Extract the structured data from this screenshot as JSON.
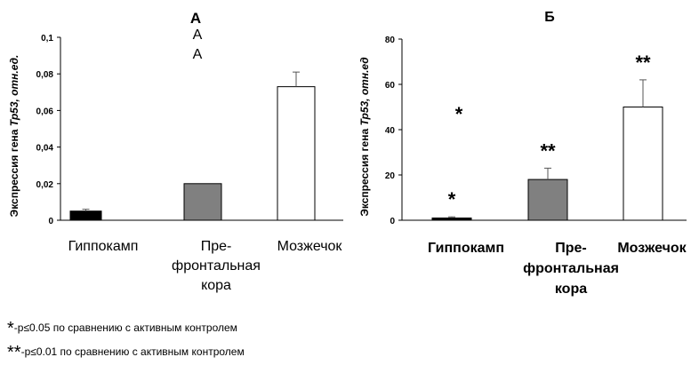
{
  "chart_data": [
    {
      "type": "bar",
      "title": "А",
      "annotations": [
        "А",
        "А"
      ],
      "ylabel_main": "Экспрессия гена ",
      "ylabel_italic": "Тр53, отн.ед.",
      "xlabel": "",
      "categories": [
        "Гиппокамп",
        "Пре-\nфронтальная\nкора",
        "Мозжечок"
      ],
      "values": [
        0.005,
        0.02,
        0.073
      ],
      "errors": [
        0.001,
        0.0,
        0.008
      ],
      "significance": [
        "",
        "",
        ""
      ],
      "colors": [
        "#000000",
        "#808080",
        "#ffffff"
      ],
      "ylim": [
        0,
        0.1
      ],
      "yticks": [
        0,
        0.02,
        0.04,
        0.06,
        0.08,
        0.1
      ],
      "ytick_labels": [
        "0",
        "0,02",
        "0,04",
        "0,06",
        "0,08",
        "0,1"
      ],
      "grid": false,
      "legend": "none"
    },
    {
      "type": "bar",
      "title": "Б",
      "annotations": [
        "*"
      ],
      "ylabel_main": "Экспрессия гена ",
      "ylabel_italic": "Тр53, отн.ед",
      "xlabel": "",
      "categories": [
        "Гиппокамп",
        "Пре-\nфронтальная\nкора",
        "Мозжечок"
      ],
      "values": [
        1,
        18,
        50
      ],
      "errors": [
        0.5,
        5,
        12
      ],
      "significance": [
        "*",
        "**",
        "**"
      ],
      "colors": [
        "#000000",
        "#808080",
        "#ffffff"
      ],
      "ylim": [
        0,
        80
      ],
      "yticks": [
        0,
        20,
        40,
        60,
        80
      ],
      "ytick_labels": [
        "0",
        "20",
        "40",
        "60",
        "80"
      ],
      "grid": false,
      "legend": "none"
    }
  ],
  "footnotes": [
    {
      "mark": "*",
      "text": "-p≤0.05 по сравнению с активным контролем"
    },
    {
      "mark": "**",
      "text": "-p≤0.01 по сравнению с активным контролем"
    }
  ]
}
